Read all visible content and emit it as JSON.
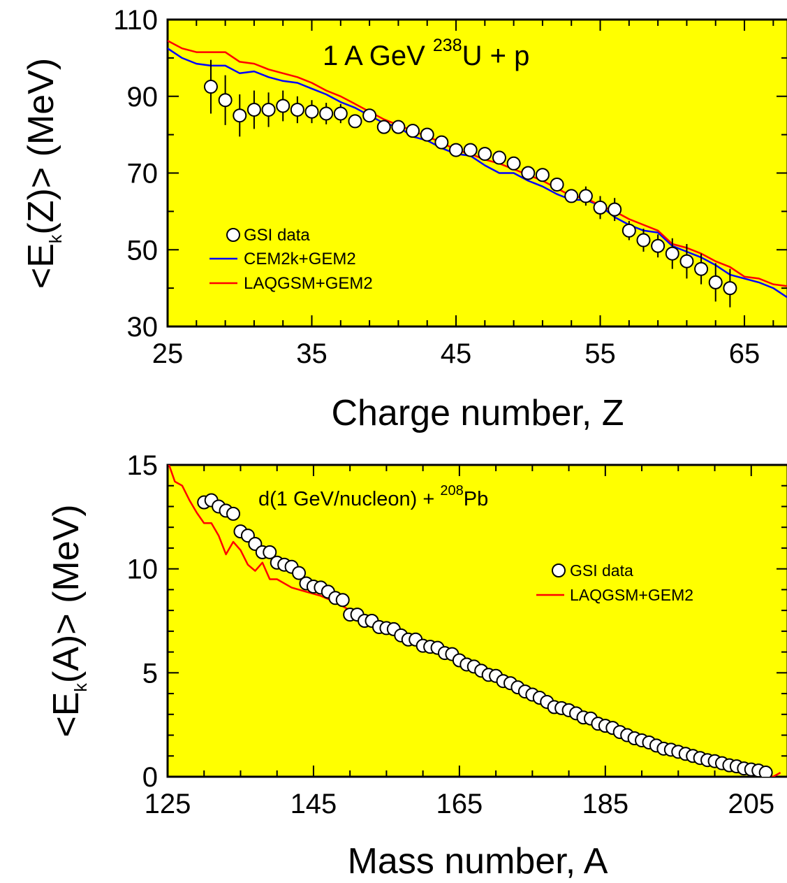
{
  "chart_data": [
    {
      "type": "scatter",
      "title_prefix": "1 A GeV ",
      "title_sup": "238",
      "title_suffix": "U + p",
      "xlabel": "Charge number, Z",
      "ylabel_prefix": "<E",
      "ylabel_sub": "k",
      "ylabel_suffix": "(Z)> (MeV)",
      "xlim": [
        25,
        68
      ],
      "ylim": [
        30,
        110
      ],
      "xticks": [
        "25",
        "35",
        "45",
        "55",
        "65"
      ],
      "yticks": [
        "30",
        "50",
        "70",
        "90",
        "110"
      ],
      "background_color": "#ffff00",
      "legend": {
        "position": "lower-left",
        "entries": [
          "GSI data",
          "CEM2k+GEM2",
          "LAQGSM+GEM2"
        ]
      },
      "series": [
        {
          "name": "GSI data",
          "kind": "points-with-errors",
          "x": [
            28,
            29,
            30,
            31,
            32,
            33,
            34,
            35,
            36,
            37,
            38,
            39,
            40,
            41,
            42,
            43,
            44,
            45,
            46,
            47,
            48,
            49,
            50,
            51,
            52,
            53,
            54,
            55,
            56,
            57,
            58,
            59,
            60,
            61,
            62,
            63,
            64
          ],
          "y": [
            92.5,
            89,
            85,
            86.5,
            86.5,
            87.5,
            86.5,
            86,
            85.5,
            85.5,
            83.5,
            85,
            82,
            82,
            81,
            80,
            78,
            76,
            76,
            75,
            74,
            72.5,
            70,
            69.5,
            67,
            64,
            64,
            61,
            60.5,
            55,
            52.5,
            51,
            49,
            47,
            45,
            41.5,
            40
          ],
          "yerr": [
            7,
            6.5,
            5.5,
            5,
            4.5,
            4,
            3.5,
            3,
            2.8,
            2.5,
            1.5,
            1.5,
            1.5,
            1.5,
            1.5,
            1.5,
            1.5,
            1.5,
            1.5,
            1.5,
            1.5,
            1.5,
            1.5,
            1.5,
            1.5,
            1.5,
            2.5,
            3,
            3,
            2.5,
            3,
            3,
            4,
            4.5,
            4,
            5,
            5
          ]
        },
        {
          "name": "CEM2k+GEM2",
          "kind": "line",
          "color": "#0000ff",
          "x": [
            25,
            26,
            27,
            28,
            29,
            30,
            31,
            32,
            33,
            34,
            35,
            36,
            37,
            38,
            39,
            40,
            41,
            42,
            43,
            44,
            45,
            46,
            47,
            48,
            49,
            50,
            51,
            52,
            53,
            54,
            55,
            56,
            57,
            58,
            59,
            60,
            61,
            62,
            63,
            64,
            65,
            66,
            67,
            68
          ],
          "y": [
            102.5,
            100,
            98.5,
            98,
            98,
            96,
            96.5,
            95,
            94,
            93.5,
            92,
            90.5,
            88.5,
            87,
            85,
            83,
            82,
            79.5,
            78.5,
            76.5,
            75,
            74.5,
            72,
            70,
            70,
            68,
            66.5,
            64.5,
            63,
            63,
            61.5,
            58.5,
            56.5,
            55,
            54.5,
            51,
            49.5,
            48,
            46,
            43.5,
            42.5,
            41.5,
            40,
            37.5
          ]
        },
        {
          "name": "LAQGSM+GEM2",
          "kind": "line",
          "color": "#ff0000",
          "x": [
            25,
            26,
            27,
            28,
            29,
            30,
            31,
            32,
            33,
            34,
            35,
            36,
            37,
            38,
            39,
            40,
            41,
            42,
            43,
            44,
            45,
            46,
            47,
            48,
            49,
            50,
            51,
            52,
            53,
            54,
            55,
            56,
            57,
            58,
            59,
            60,
            61,
            62,
            63,
            64,
            65,
            66,
            67,
            68
          ],
          "y": [
            104.5,
            102.5,
            101.5,
            101.5,
            101.5,
            99,
            98.5,
            97,
            96,
            95,
            93.5,
            91.5,
            90,
            88,
            86,
            84,
            82.5,
            81,
            79.5,
            78,
            76,
            75,
            73.5,
            72.5,
            71,
            69.5,
            68,
            66,
            64,
            63.5,
            61.5,
            60,
            58,
            56.5,
            55,
            51.5,
            50.5,
            49,
            47,
            45.5,
            43,
            42.5,
            41,
            40.5
          ]
        }
      ]
    },
    {
      "type": "scatter",
      "title_prefix": "d(1 GeV/nucleon) + ",
      "title_sup": "208",
      "title_suffix": "Pb",
      "xlabel": "Mass number, A",
      "ylabel_prefix": "<E",
      "ylabel_sub": "k",
      "ylabel_suffix": "(A)> (MeV)",
      "xlim": [
        125,
        210
      ],
      "ylim": [
        0,
        15
      ],
      "xticks": [
        "125",
        "145",
        "165",
        "185",
        "205"
      ],
      "yticks": [
        "0",
        "5",
        "10",
        "15"
      ],
      "background_color": "#ffff00",
      "legend": {
        "position": "upper-right",
        "entries": [
          "GSI data",
          "LAQGSM+GEM2"
        ]
      },
      "series": [
        {
          "name": "GSI data",
          "kind": "points",
          "x": [
            130,
            131,
            132,
            133,
            134,
            135,
            136,
            137,
            138,
            139,
            140,
            141,
            142,
            143,
            144,
            145,
            146,
            147,
            148,
            149,
            150,
            151,
            152,
            153,
            154,
            155,
            156,
            157,
            158,
            159,
            160,
            161,
            162,
            163,
            164,
            165,
            166,
            167,
            168,
            169,
            170,
            171,
            172,
            173,
            174,
            175,
            176,
            177,
            178,
            179,
            180,
            181,
            182,
            183,
            184,
            185,
            186,
            187,
            188,
            189,
            190,
            191,
            192,
            193,
            194,
            195,
            196,
            197,
            198,
            199,
            200,
            201,
            202,
            203,
            204,
            205,
            206,
            207
          ],
          "y": [
            13.2,
            13.3,
            13,
            12.8,
            12.65,
            11.8,
            11.6,
            11.2,
            10.8,
            10.8,
            10.3,
            10.2,
            10.1,
            9.8,
            9.3,
            9.15,
            9.1,
            8.9,
            8.6,
            8.5,
            7.8,
            7.8,
            7.5,
            7.5,
            7.2,
            7.15,
            7.1,
            6.8,
            6.6,
            6.6,
            6.3,
            6.25,
            6.2,
            5.95,
            5.9,
            5.6,
            5.4,
            5.3,
            5.1,
            4.9,
            4.85,
            4.6,
            4.5,
            4.3,
            4.1,
            3.95,
            3.8,
            3.6,
            3.35,
            3.3,
            3.2,
            3.05,
            2.85,
            2.8,
            2.55,
            2.45,
            2.35,
            2.15,
            2,
            1.85,
            1.75,
            1.65,
            1.5,
            1.35,
            1.3,
            1.2,
            1.1,
            1,
            0.9,
            0.8,
            0.75,
            0.65,
            0.55,
            0.5,
            0.4,
            0.35,
            0.3,
            0.2
          ]
        },
        {
          "name": "LAQGSM+GEM2",
          "kind": "line",
          "color": "#ff0000",
          "x": [
            125,
            126,
            127,
            128,
            129,
            130,
            131,
            132,
            133,
            134,
            135,
            136,
            137,
            138,
            139,
            140,
            142,
            144,
            146,
            148,
            150,
            152,
            155,
            158,
            160,
            163,
            166,
            170,
            174,
            178,
            182,
            186,
            190,
            194,
            198,
            202,
            204,
            206,
            207,
            208,
            209
          ],
          "y": [
            15.2,
            14.2,
            14,
            13.3,
            12.7,
            12.2,
            12.2,
            11.6,
            10.7,
            11.3,
            10.9,
            10.2,
            9.9,
            10.3,
            9.5,
            9.5,
            9.1,
            8.9,
            8.7,
            8.4,
            8.0,
            7.6,
            7.1,
            6.7,
            6.4,
            5.8,
            5.3,
            4.7,
            4.1,
            3.5,
            2.9,
            2.3,
            1.7,
            1.2,
            0.7,
            0.3,
            0.15,
            0.05,
            0.0,
            0.0,
            0.2
          ]
        }
      ]
    }
  ]
}
